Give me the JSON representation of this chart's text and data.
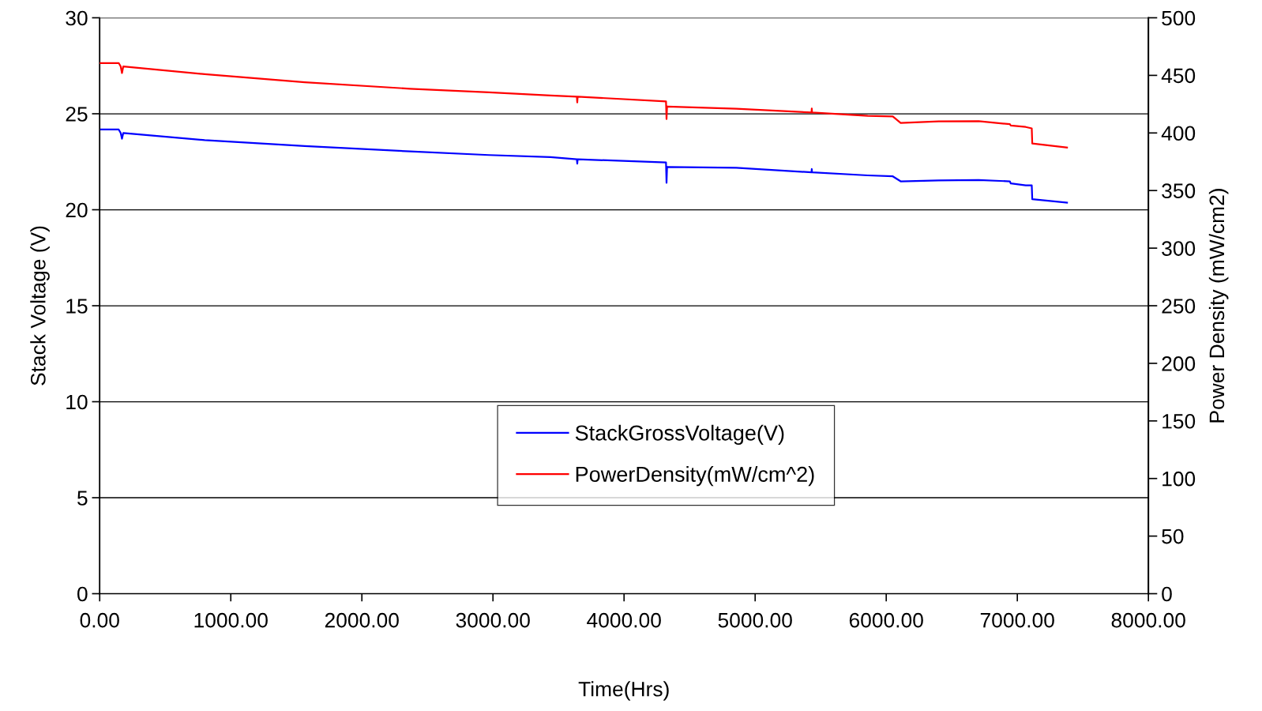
{
  "chart_data": {
    "type": "line",
    "xlabel": "Time(Hrs)",
    "ylabel": "Stack Voltage (V)",
    "y2label": "Power Density (mW/cm2)",
    "xlim": [
      0,
      8000
    ],
    "xticks": [
      {
        "value": 0,
        "label": "0.00"
      },
      {
        "value": 1000,
        "label": "1000.00"
      },
      {
        "value": 2000,
        "label": "2000.00"
      },
      {
        "value": 3000,
        "label": "3000.00"
      },
      {
        "value": 4000,
        "label": "4000.00"
      },
      {
        "value": 5000,
        "label": "5000.00"
      },
      {
        "value": 6000,
        "label": "6000.00"
      },
      {
        "value": 7000,
        "label": "7000.00"
      },
      {
        "value": 8000,
        "label": "8000.00"
      }
    ],
    "ylim": [
      0,
      30
    ],
    "yticks": [
      0,
      5,
      10,
      15,
      20,
      25,
      30
    ],
    "y2lim": [
      0,
      500
    ],
    "y2ticks": [
      0,
      50,
      100,
      150,
      200,
      250,
      300,
      350,
      400,
      450,
      500
    ],
    "grid": "y",
    "legend": "bottom",
    "marker": "none",
    "line_style": "solid",
    "series": [
      {
        "name": "StackGrossVoltage(V)",
        "color": "#0000ff",
        "x": [
          0,
          145,
          160,
          170,
          180,
          801,
          1564,
          2367,
          2969,
          3439,
          3640,
          3643,
          3646,
          4320,
          4324,
          4328,
          4856,
          5430,
          5432,
          5434,
          5859,
          6050,
          6110,
          6400,
          6705,
          6943,
          6950,
          7064,
          7110,
          7114,
          7379
        ],
        "values": [
          24.18,
          24.18,
          24.0,
          23.7,
          24.0,
          23.63,
          23.32,
          23.04,
          22.85,
          22.74,
          22.63,
          22.4,
          22.63,
          22.46,
          21.4,
          22.23,
          22.19,
          21.95,
          22.12,
          21.95,
          21.79,
          21.74,
          21.48,
          21.53,
          21.55,
          21.48,
          21.37,
          21.27,
          21.27,
          20.55,
          20.37
        ]
      },
      {
        "name": "PowerDensity(mW/cm^2)",
        "color": "#ff0000",
        "axis": "y2",
        "x": [
          0,
          145,
          160,
          170,
          180,
          801,
          1564,
          2367,
          2969,
          3439,
          3640,
          3643,
          3646,
          4320,
          4324,
          4328,
          4856,
          5430,
          5432,
          5434,
          5859,
          6050,
          6110,
          6400,
          6705,
          6943,
          6950,
          7064,
          7110,
          7114,
          7379
        ],
        "values": [
          460.7,
          460.7,
          457.8,
          452,
          457.8,
          451,
          444,
          438.4,
          435.2,
          432.6,
          431.5,
          426.5,
          431.5,
          427.4,
          412.1,
          423,
          421,
          417.8,
          421.2,
          417.8,
          414.8,
          414.4,
          408.7,
          410,
          410.3,
          407.6,
          406.5,
          405.2,
          404,
          390.8,
          387.4
        ]
      }
    ]
  }
}
